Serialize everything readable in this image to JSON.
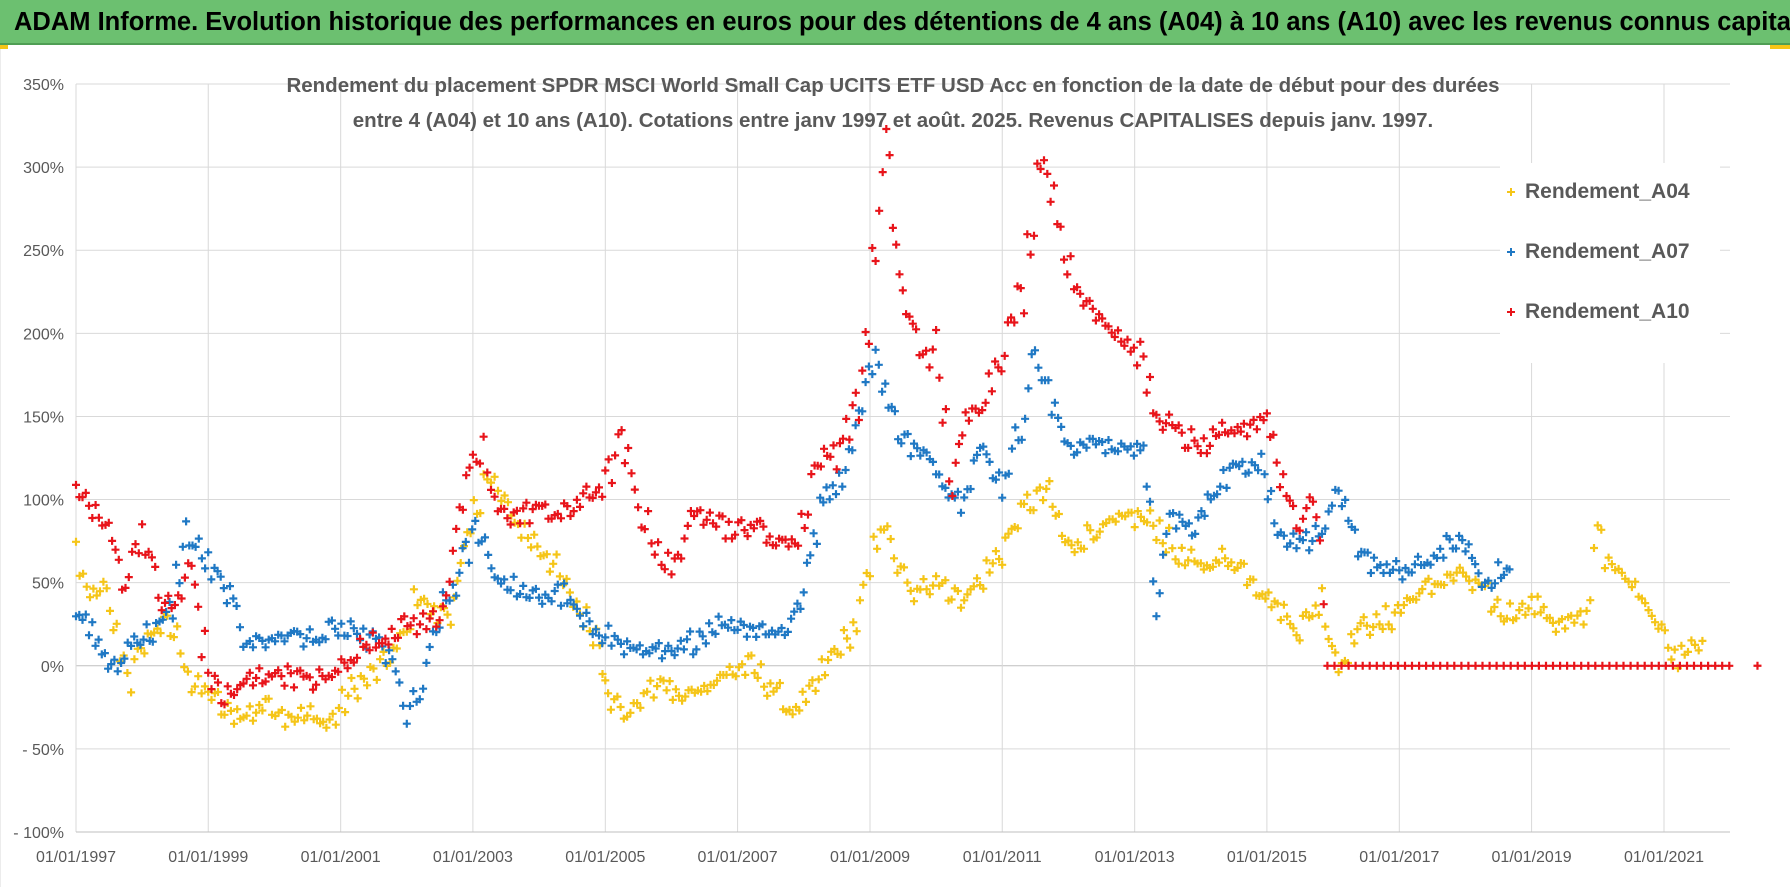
{
  "banner": {
    "title": "ADAM Informe. Evolution historique des performances en euros pour des détentions de 4 ans (A04) à 10 ans (A10) avec les revenus connus capitalisés"
  },
  "chart_data": {
    "type": "scatter",
    "title_line1": "Rendement du placement SPDR MSCI World Small Cap UCITS ETF USD Acc en fonction de la date de début pour des durées",
    "title_line2": "entre 4 (A04) et 10 ans (A10).  Cotations entre janv 1997 et août. 2025. Revenus CAPITALISES depuis janv. 1997.",
    "xlabel": "",
    "ylabel": "",
    "xlim": [
      "1997-01-01",
      "2022-06-01"
    ],
    "ylim": [
      -100,
      350
    ],
    "x_ticks": [
      "01/01/1997",
      "01/01/1999",
      "01/01/2001",
      "01/01/2003",
      "01/01/2005",
      "01/01/2007",
      "01/01/2009",
      "01/01/2011",
      "01/01/2013",
      "01/01/2015",
      "01/01/2017",
      "01/01/2019",
      "01/01/2021"
    ],
    "y_ticks": [
      {
        "value": 350,
        "label": "350%"
      },
      {
        "value": 300,
        "label": "300%"
      },
      {
        "value": 250,
        "label": "250%"
      },
      {
        "value": 200,
        "label": "200%"
      },
      {
        "value": 150,
        "label": "150%"
      },
      {
        "value": 100,
        "label": "100%"
      },
      {
        "value": 50,
        "label": "50%"
      },
      {
        "value": 0,
        "label": "0%"
      },
      {
        "value": -50,
        "label": "- 50%"
      },
      {
        "value": -100,
        "label": "- 100%"
      }
    ],
    "grid": true,
    "legend_position": "top-right",
    "marker": "+",
    "series": [
      {
        "name": "Rendement_A04",
        "color": "#f5c518",
        "points": [
          [
            "1997-01-01",
            70
          ],
          [
            "1997-03-01",
            42
          ],
          [
            "1997-06-01",
            45
          ],
          [
            "1997-09-01",
            10
          ],
          [
            "1997-11-01",
            -8
          ],
          [
            "1998-02-01",
            18
          ],
          [
            "1998-05-01",
            25
          ],
          [
            "1998-08-01",
            15
          ],
          [
            "1998-10-01",
            -12
          ],
          [
            "1999-01-01",
            -15
          ],
          [
            "1999-04-01",
            -28
          ],
          [
            "1999-08-01",
            -30
          ],
          [
            "1999-12-01",
            -22
          ],
          [
            "2000-03-01",
            -30
          ],
          [
            "2000-07-01",
            -30
          ],
          [
            "2000-11-01",
            -35
          ],
          [
            "2001-03-01",
            -15
          ],
          [
            "2001-07-01",
            -5
          ],
          [
            "2001-10-01",
            5
          ],
          [
            "2002-01-01",
            20
          ],
          [
            "2002-03-01",
            45
          ],
          [
            "2002-06-01",
            30
          ],
          [
            "2002-09-01",
            35
          ],
          [
            "2002-12-01",
            70
          ],
          [
            "2003-03-01",
            115
          ],
          [
            "2003-05-01",
            108
          ],
          [
            "2003-08-01",
            90
          ],
          [
            "2003-11-01",
            78
          ],
          [
            "2004-03-01",
            65
          ],
          [
            "2004-06-01",
            45
          ],
          [
            "2004-09-01",
            30
          ],
          [
            "2004-12-01",
            15
          ],
          [
            "2005-02-01",
            -20
          ],
          [
            "2005-05-01",
            -30
          ],
          [
            "2005-08-01",
            -18
          ],
          [
            "2005-11-01",
            -10
          ],
          [
            "2006-03-01",
            -20
          ],
          [
            "2006-07-01",
            -12
          ],
          [
            "2006-11-01",
            -5
          ],
          [
            "2007-03-01",
            0
          ],
          [
            "2007-07-01",
            -12
          ],
          [
            "2007-11-01",
            -28
          ],
          [
            "2008-02-01",
            -20
          ],
          [
            "2008-06-01",
            5
          ],
          [
            "2008-10-01",
            20
          ],
          [
            "2009-01-01",
            55
          ],
          [
            "2009-03-01",
            90
          ],
          [
            "2009-06-01",
            60
          ],
          [
            "2009-09-01",
            40
          ],
          [
            "2010-01-01",
            55
          ],
          [
            "2010-05-01",
            40
          ],
          [
            "2010-09-01",
            50
          ],
          [
            "2011-01-01",
            70
          ],
          [
            "2011-05-01",
            95
          ],
          [
            "2011-09-01",
            105
          ],
          [
            "2012-01-01",
            70
          ],
          [
            "2012-05-01",
            80
          ],
          [
            "2012-09-01",
            85
          ],
          [
            "2013-01-01",
            90
          ],
          [
            "2013-05-01",
            85
          ],
          [
            "2013-09-01",
            65
          ],
          [
            "2014-01-01",
            60
          ],
          [
            "2014-06-01",
            65
          ],
          [
            "2014-10-01",
            55
          ],
          [
            "2015-03-01",
            35
          ],
          [
            "2015-07-01",
            22
          ],
          [
            "2015-11-01",
            40
          ],
          [
            "2016-02-01",
            0
          ],
          [
            "2016-06-01",
            25
          ],
          [
            "2016-10-01",
            25
          ],
          [
            "2017-03-01",
            40
          ],
          [
            "2017-08-01",
            50
          ],
          [
            "2017-12-01",
            55
          ],
          [
            "2018-04-01",
            45
          ],
          [
            "2018-08-01",
            30
          ],
          [
            "2019-01-01",
            38
          ],
          [
            "2019-06-01",
            25
          ],
          [
            "2019-11-01",
            28
          ],
          [
            "2020-01-01",
            90
          ],
          [
            "2020-03-01",
            60
          ],
          [
            "2020-06-01",
            52
          ],
          [
            "2020-09-01",
            45
          ],
          [
            "2020-12-01",
            25
          ],
          [
            "2021-03-01",
            5
          ],
          [
            "2021-06-01",
            15
          ],
          [
            "2021-08-01",
            15
          ]
        ]
      },
      {
        "name": "Rendement_A07",
        "color": "#1f78c4",
        "points": [
          [
            "1997-01-01",
            30
          ],
          [
            "1997-04-01",
            20
          ],
          [
            "1997-08-01",
            -5
          ],
          [
            "1997-11-01",
            15
          ],
          [
            "1998-03-01",
            20
          ],
          [
            "1998-06-01",
            30
          ],
          [
            "1998-09-01",
            80
          ],
          [
            "1999-01-01",
            60
          ],
          [
            "1999-05-01",
            40
          ],
          [
            "1999-08-01",
            15
          ],
          [
            "1999-12-01",
            15
          ],
          [
            "2000-04-01",
            20
          ],
          [
            "2000-08-01",
            15
          ],
          [
            "2000-12-01",
            22
          ],
          [
            "2001-04-01",
            18
          ],
          [
            "2001-08-01",
            15
          ],
          [
            "2001-11-01",
            -5
          ],
          [
            "2002-01-01",
            -30
          ],
          [
            "2002-04-01",
            -15
          ],
          [
            "2002-07-01",
            30
          ],
          [
            "2002-10-01",
            50
          ],
          [
            "2003-02-01",
            85
          ],
          [
            "2003-05-01",
            55
          ],
          [
            "2003-09-01",
            45
          ],
          [
            "2004-01-01",
            40
          ],
          [
            "2004-05-01",
            45
          ],
          [
            "2004-09-01",
            25
          ],
          [
            "2005-01-01",
            20
          ],
          [
            "2005-05-01",
            10
          ],
          [
            "2005-09-01",
            10
          ],
          [
            "2006-01-01",
            5
          ],
          [
            "2006-05-01",
            15
          ],
          [
            "2006-09-01",
            25
          ],
          [
            "2007-01-01",
            25
          ],
          [
            "2007-05-01",
            22
          ],
          [
            "2007-09-01",
            20
          ],
          [
            "2008-01-01",
            40
          ],
          [
            "2008-04-01",
            100
          ],
          [
            "2008-08-01",
            115
          ],
          [
            "2008-11-01",
            150
          ],
          [
            "2009-02-01",
            190
          ],
          [
            "2009-05-01",
            150
          ],
          [
            "2009-09-01",
            130
          ],
          [
            "2010-01-01",
            120
          ],
          [
            "2010-05-01",
            100
          ],
          [
            "2010-09-01",
            130
          ],
          [
            "2011-01-01",
            110
          ],
          [
            "2011-04-01",
            140
          ],
          [
            "2011-07-01",
            190
          ],
          [
            "2011-10-01",
            155
          ],
          [
            "2012-02-01",
            130
          ],
          [
            "2012-06-01",
            135
          ],
          [
            "2012-10-01",
            130
          ],
          [
            "2013-02-01",
            135
          ],
          [
            "2013-05-01",
            40
          ],
          [
            "2013-08-01",
            90
          ],
          [
            "2013-12-01",
            80
          ],
          [
            "2014-04-01",
            110
          ],
          [
            "2014-08-01",
            120
          ],
          [
            "2014-12-01",
            125
          ],
          [
            "2015-03-01",
            80
          ],
          [
            "2015-07-01",
            75
          ],
          [
            "2015-11-01",
            80
          ],
          [
            "2016-02-01",
            100
          ],
          [
            "2016-05-01",
            75
          ],
          [
            "2016-09-01",
            60
          ],
          [
            "2017-01-01",
            55
          ],
          [
            "2017-05-01",
            60
          ],
          [
            "2017-09-01",
            70
          ],
          [
            "2018-01-01",
            75
          ],
          [
            "2018-04-01",
            50
          ],
          [
            "2018-07-01",
            55
          ],
          [
            "2018-09-01",
            58
          ]
        ]
      },
      {
        "name": "Rendement_A10",
        "color": "#e8141a",
        "points": [
          [
            "1997-01-01",
            105
          ],
          [
            "1997-04-01",
            95
          ],
          [
            "1997-07-01",
            80
          ],
          [
            "1997-10-01",
            50
          ],
          [
            "1998-01-01",
            85
          ],
          [
            "1998-04-01",
            40
          ],
          [
            "1998-07-01",
            35
          ],
          [
            "1998-10-01",
            60
          ],
          [
            "1999-01-01",
            -5
          ],
          [
            "1999-04-01",
            -20
          ],
          [
            "1999-08-01",
            -10
          ],
          [
            "1999-12-01",
            -5
          ],
          [
            "2000-04-01",
            -5
          ],
          [
            "2000-08-01",
            -10
          ],
          [
            "2000-12-01",
            -5
          ],
          [
            "2001-04-01",
            10
          ],
          [
            "2001-08-01",
            15
          ],
          [
            "2001-12-01",
            25
          ],
          [
            "2002-04-01",
            25
          ],
          [
            "2002-07-01",
            30
          ],
          [
            "2002-10-01",
            80
          ],
          [
            "2003-01-01",
            120
          ],
          [
            "2003-03-01",
            130
          ],
          [
            "2003-05-01",
            95
          ],
          [
            "2003-09-01",
            90
          ],
          [
            "2004-01-01",
            95
          ],
          [
            "2004-05-01",
            90
          ],
          [
            "2004-09-01",
            100
          ],
          [
            "2005-01-01",
            110
          ],
          [
            "2005-04-01",
            135
          ],
          [
            "2005-07-01",
            95
          ],
          [
            "2005-10-01",
            75
          ],
          [
            "2006-01-01",
            55
          ],
          [
            "2006-04-01",
            85
          ],
          [
            "2006-08-01",
            95
          ],
          [
            "2006-12-01",
            80
          ],
          [
            "2007-04-01",
            85
          ],
          [
            "2007-08-01",
            75
          ],
          [
            "2007-12-01",
            75
          ],
          [
            "2008-03-01",
            120
          ],
          [
            "2008-07-01",
            130
          ],
          [
            "2008-11-01",
            160
          ],
          [
            "2009-02-01",
            250
          ],
          [
            "2009-04-01",
            310
          ],
          [
            "2009-07-01",
            220
          ],
          [
            "2009-10-01",
            190
          ],
          [
            "2010-01-01",
            185
          ],
          [
            "2010-04-01",
            110
          ],
          [
            "2010-07-01",
            150
          ],
          [
            "2010-10-01",
            165
          ],
          [
            "2011-02-01",
            200
          ],
          [
            "2011-05-01",
            230
          ],
          [
            "2011-08-01",
            310
          ],
          [
            "2011-11-01",
            275
          ],
          [
            "2012-02-01",
            225
          ],
          [
            "2012-06-01",
            215
          ],
          [
            "2012-10-01",
            200
          ],
          [
            "2013-02-01",
            185
          ],
          [
            "2013-05-01",
            150
          ],
          [
            "2013-09-01",
            140
          ],
          [
            "2014-01-01",
            130
          ],
          [
            "2014-06-01",
            140
          ],
          [
            "2014-10-01",
            145
          ],
          [
            "2015-01-01",
            150
          ],
          [
            "2015-04-01",
            110
          ],
          [
            "2015-07-01",
            85
          ],
          [
            "2015-10-01",
            105
          ],
          [
            "2015-12-01",
            0
          ],
          [
            "2022-06-01",
            0
          ]
        ]
      }
    ]
  }
}
